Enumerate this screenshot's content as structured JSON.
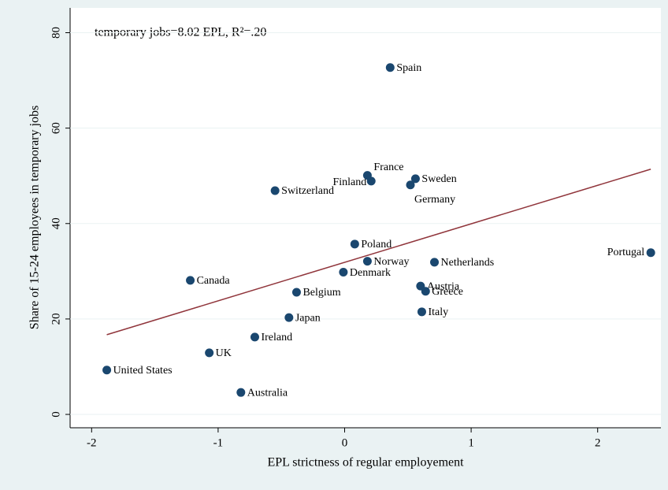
{
  "chart_data": {
    "type": "scatter",
    "annotation": "temporary jobs=8.02 EPL, R²=.20",
    "x_label": "EPL strictness of regular employement",
    "y_label": "Share of 15-24 employees in temporary jobs",
    "labels": [
      "United States",
      "UK",
      "Australia",
      "Ireland",
      "Japan",
      "Belgium",
      "Canada",
      "Switzerland",
      "Denmark",
      "Poland",
      "Norway",
      "Finland",
      "France",
      "Spain",
      "Sweden",
      "Germany",
      "Netherlands",
      "Austria",
      "Greece",
      "Italy",
      "Portugal"
    ],
    "x": [
      -1.88,
      -1.07,
      -0.82,
      -0.71,
      -0.44,
      -0.38,
      -1.22,
      -0.55,
      -0.01,
      0.08,
      0.18,
      0.21,
      0.18,
      0.36,
      0.56,
      0.52,
      0.71,
      0.6,
      0.64,
      0.61,
      2.42
    ],
    "y": [
      9.3,
      12.9,
      4.6,
      16.2,
      20.3,
      25.6,
      28.1,
      46.9,
      29.8,
      35.7,
      32.1,
      48.9,
      50.1,
      72.7,
      49.4,
      48.1,
      31.9,
      26.9,
      25.8,
      21.5,
      33.9
    ],
    "color": "#1a476f",
    "fit": {
      "x": [
        -1.88,
        2.42
      ],
      "y": [
        16.7,
        51.4
      ],
      "color": "#90353b"
    },
    "xlim": [
      -2.17,
      2.5
    ],
    "ylim": [
      -2.8,
      85.2
    ],
    "xticks": [
      -2,
      -1,
      0,
      1,
      2
    ],
    "yticks": [
      0,
      20,
      40,
      60,
      80
    ],
    "grid": true
  }
}
